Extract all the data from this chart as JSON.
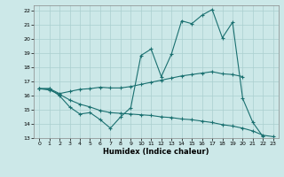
{
  "xlabel": "Humidex (Indice chaleur)",
  "bg_color": "#cce8e8",
  "grid_color": "#aacfcf",
  "line_color": "#1a7070",
  "xlim": [
    -0.5,
    23.5
  ],
  "ylim": [
    13,
    22.4
  ],
  "yticks": [
    13,
    14,
    15,
    16,
    17,
    18,
    19,
    20,
    21,
    22
  ],
  "xticks": [
    0,
    1,
    2,
    3,
    4,
    5,
    6,
    7,
    8,
    9,
    10,
    11,
    12,
    13,
    14,
    15,
    16,
    17,
    18,
    19,
    20,
    21,
    22,
    23
  ],
  "line1_x": [
    0,
    1,
    2,
    3,
    4,
    5,
    6,
    7,
    8,
    9,
    10,
    11,
    12,
    13,
    14,
    15,
    16,
    17,
    18,
    19,
    20,
    21,
    22
  ],
  "line1_y": [
    16.5,
    16.5,
    16.0,
    15.2,
    14.7,
    14.8,
    14.3,
    13.7,
    14.5,
    15.15,
    18.85,
    19.3,
    17.35,
    18.95,
    21.3,
    21.1,
    21.7,
    22.1,
    20.1,
    21.2,
    15.8,
    14.1,
    13.1
  ],
  "line2_x": [
    0,
    1,
    2,
    3,
    4,
    5,
    6,
    7,
    8,
    9,
    10,
    11,
    12,
    13,
    14,
    15,
    16,
    17,
    18,
    19,
    20
  ],
  "line2_y": [
    16.5,
    16.5,
    16.15,
    16.3,
    16.45,
    16.5,
    16.6,
    16.55,
    16.55,
    16.65,
    16.8,
    16.95,
    17.1,
    17.25,
    17.4,
    17.5,
    17.6,
    17.7,
    17.55,
    17.5,
    17.35
  ],
  "line3_x": [
    0,
    1,
    2,
    3,
    4,
    5,
    6,
    7,
    8,
    9,
    10,
    11,
    12,
    13,
    14,
    15,
    16,
    17,
    18,
    19,
    20,
    21,
    22,
    23
  ],
  "line3_y": [
    16.5,
    16.4,
    16.1,
    15.7,
    15.4,
    15.2,
    14.95,
    14.8,
    14.75,
    14.7,
    14.65,
    14.6,
    14.5,
    14.45,
    14.35,
    14.3,
    14.2,
    14.1,
    13.95,
    13.85,
    13.7,
    13.5,
    13.2,
    13.1
  ]
}
